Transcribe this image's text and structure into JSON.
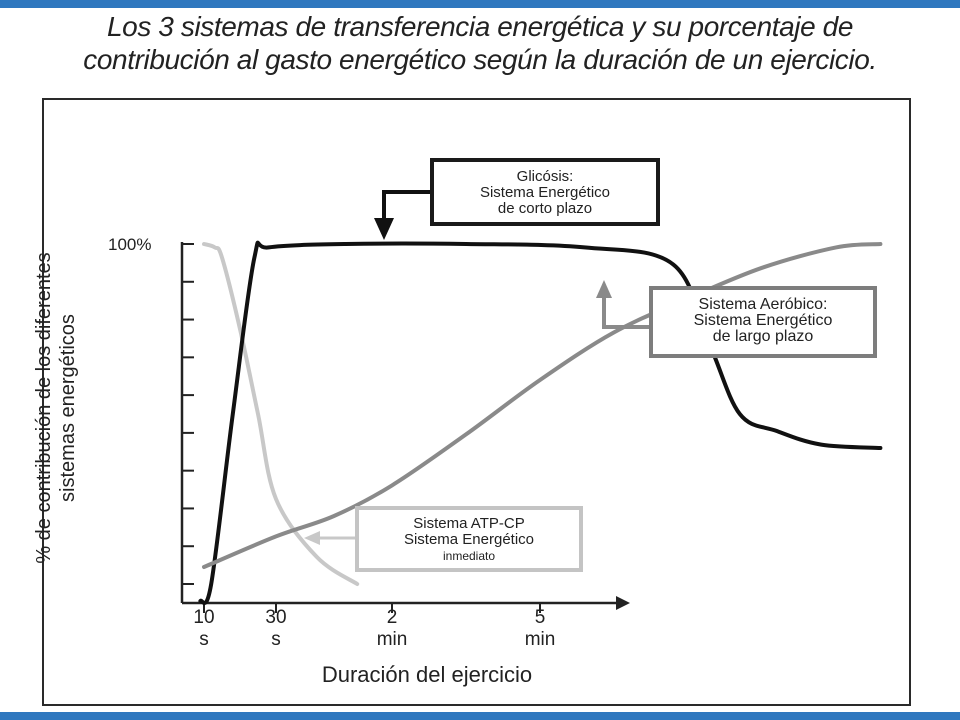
{
  "title": {
    "line1": "Los 3 sistemas de transferencia energética y su porcentaje de",
    "line2": "contribución al gasto energético según la duración de  un ejercicio."
  },
  "chart_data": {
    "type": "line",
    "title": "",
    "xlabel": "Duración del ejercicio",
    "ylabel_lines": [
      "% de contribución de los diferentes",
      "sistemas energéticos"
    ],
    "y_tick_label": "100%",
    "x_ticks": [
      {
        "value": "10",
        "unit": "s"
      },
      {
        "value": "30",
        "unit": "s"
      },
      {
        "value": "2",
        "unit": "min"
      },
      {
        "value": "5",
        "unit": "min"
      }
    ],
    "ylim": [
      0,
      100
    ],
    "grid": false,
    "series": [
      {
        "name": "Sistema ATP-CP",
        "color": "#c8c8c8",
        "points": [
          [
            0.0,
            100
          ],
          [
            0.15,
            99
          ],
          [
            0.25,
            96
          ],
          [
            0.5,
            75
          ],
          [
            0.75,
            50
          ],
          [
            1.0,
            25
          ],
          [
            1.35,
            8
          ],
          [
            1.7,
            0
          ]
        ]
      },
      {
        "name": "Glicósis",
        "color": "#111111",
        "points": [
          [
            -0.05,
            -5
          ],
          [
            0.1,
            0
          ],
          [
            0.4,
            50
          ],
          [
            0.7,
            96
          ],
          [
            0.9,
            99
          ],
          [
            1.6,
            100
          ],
          [
            2.5,
            100
          ],
          [
            3.3,
            99
          ],
          [
            3.9,
            94
          ],
          [
            4.15,
            70
          ],
          [
            4.35,
            50
          ],
          [
            4.6,
            45
          ],
          [
            4.9,
            41
          ],
          [
            5.3,
            40
          ]
        ]
      },
      {
        "name": "Sistema Aeróbico",
        "color": "#8a8a8a",
        "points": [
          [
            0.0,
            5
          ],
          [
            1.0,
            14
          ],
          [
            1.5,
            20
          ],
          [
            2.0,
            29
          ],
          [
            2.5,
            44
          ],
          [
            3.0,
            60
          ],
          [
            3.5,
            74
          ],
          [
            4.0,
            84
          ],
          [
            4.5,
            93
          ],
          [
            5.0,
            99
          ],
          [
            5.3,
            100
          ]
        ]
      }
    ]
  },
  "callouts": {
    "glicosis": [
      "Glicósis:",
      "Sistema Energético",
      "de corto plazo"
    ],
    "aerobico": [
      "Sistema Aeróbico:",
      "Sistema Energético",
      "de largo plazo"
    ],
    "atp": [
      "Sistema ATP-CP",
      "Sistema Energético",
      "inmediato"
    ]
  },
  "colors": {
    "accent_bar": "#2f78bf",
    "glicosis": "#111111",
    "aerobico": "#8a8a8a",
    "atp": "#c8c8c8"
  }
}
